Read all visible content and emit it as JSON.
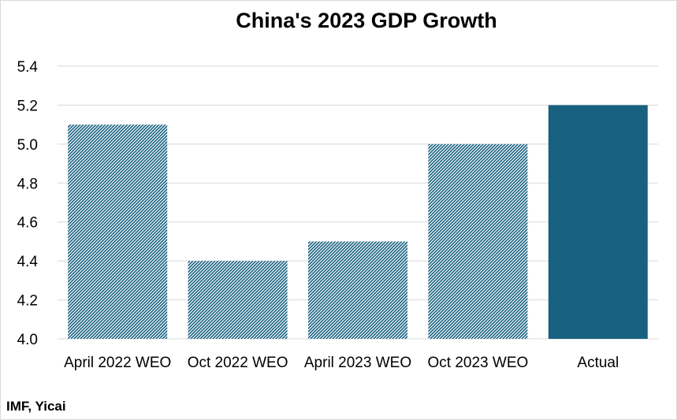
{
  "chart_data": {
    "type": "bar",
    "title": "China's 2023 GDP Growth",
    "categories": [
      "April 2022 WEO",
      "Oct 2022 WEO",
      "April 2023 WEO",
      "Oct 2023 WEO",
      "Actual"
    ],
    "values": [
      5.1,
      4.4,
      4.5,
      5.0,
      5.2
    ],
    "patterns": [
      "hatched",
      "hatched",
      "hatched",
      "hatched",
      "solid"
    ],
    "yticks": [
      "4.0",
      "4.2",
      "4.4",
      "4.6",
      "4.8",
      "5.0",
      "5.2",
      "5.4"
    ],
    "ylim": [
      4.0,
      5.4
    ],
    "grid": true,
    "xlabel": "",
    "ylabel": "",
    "colors": {
      "bar": "#17607f",
      "grid": "#d9d9d9"
    }
  },
  "source": "IMF, Yicai"
}
